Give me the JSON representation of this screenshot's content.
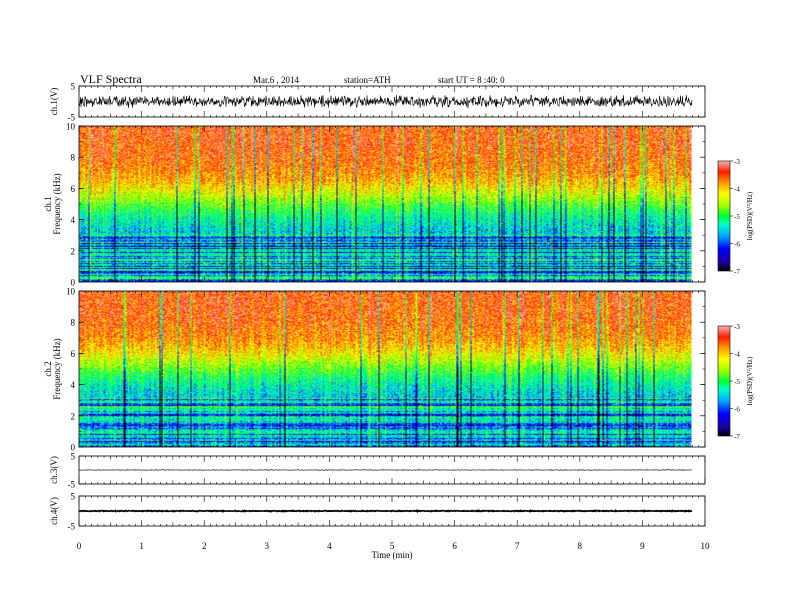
{
  "header": {
    "title": "VLF  Spectra",
    "date": "Mar.6  , 2014",
    "station": "station=ATH",
    "start_ut": "start  UT  =   8 :40: 0"
  },
  "colors": {
    "spectrum": [
      "#000000",
      "#1a00a0",
      "#0000ff",
      "#00a8ff",
      "#00ffc8",
      "#00ff30",
      "#a8ff00",
      "#ffff00",
      "#ff9a00",
      "#ff1e00",
      "#ffb4b4"
    ],
    "trace": "#000000"
  },
  "chart_data": [
    {
      "id": "ch1_trace",
      "type": "line",
      "ylabel": "ch.1(V)",
      "yticks": [
        "5",
        "-5"
      ],
      "ylim": [
        -5,
        5
      ],
      "xlim": [
        0,
        10
      ],
      "data_end_min": 9.8,
      "level": 0,
      "amplitude": 2.2
    },
    {
      "id": "ch1_spectrogram",
      "type": "heatmap",
      "ylabel_channel": "ch.1",
      "ylabel": "Frequency  (kHz)",
      "yticks": [
        "0",
        "2",
        "4",
        "6",
        "8",
        "10"
      ],
      "ylim": [
        0,
        10
      ],
      "xlim": [
        0,
        10
      ],
      "data_end_min": 9.8,
      "colorbar": {
        "label": "log(PSD)(V²/Hz)",
        "ticks": [
          "-3",
          "-4",
          "-5",
          "-6",
          "-7"
        ],
        "range": [
          -7,
          -3
        ]
      }
    },
    {
      "id": "ch2_spectrogram",
      "type": "heatmap",
      "ylabel_channel": "ch.2",
      "ylabel": "Frequency  (kHz)",
      "yticks": [
        "0",
        "2",
        "4",
        "6",
        "8",
        "10"
      ],
      "ylim": [
        0,
        10
      ],
      "xlim": [
        0,
        10
      ],
      "data_end_min": 9.8,
      "colorbar": {
        "label": "log(PSD)(V²/Hz)",
        "ticks": [
          "-3",
          "-4",
          "-5",
          "-6",
          "-7"
        ],
        "range": [
          -7,
          -3
        ]
      }
    },
    {
      "id": "ch3_trace",
      "type": "line",
      "ylabel": "ch.3(V)",
      "yticks": [
        "5",
        "-5"
      ],
      "ylim": [
        -5,
        5
      ],
      "xlim": [
        0,
        10
      ],
      "data_end_min": 9.8,
      "level": 0,
      "amplitude": 0.15
    },
    {
      "id": "ch4_trace",
      "type": "line",
      "ylabel": "ch.4(V)",
      "yticks": [
        "5",
        "-5"
      ],
      "ylim": [
        -5,
        5
      ],
      "xlim": [
        0,
        10
      ],
      "data_end_min": 9.8,
      "level": 0,
      "amplitude": 0.2
    }
  ],
  "xaxis": {
    "label": "Time  (min)",
    "ticks": [
      "0",
      "1",
      "2",
      "3",
      "4",
      "5",
      "6",
      "7",
      "8",
      "9",
      "10"
    ],
    "range": [
      0,
      10
    ]
  }
}
